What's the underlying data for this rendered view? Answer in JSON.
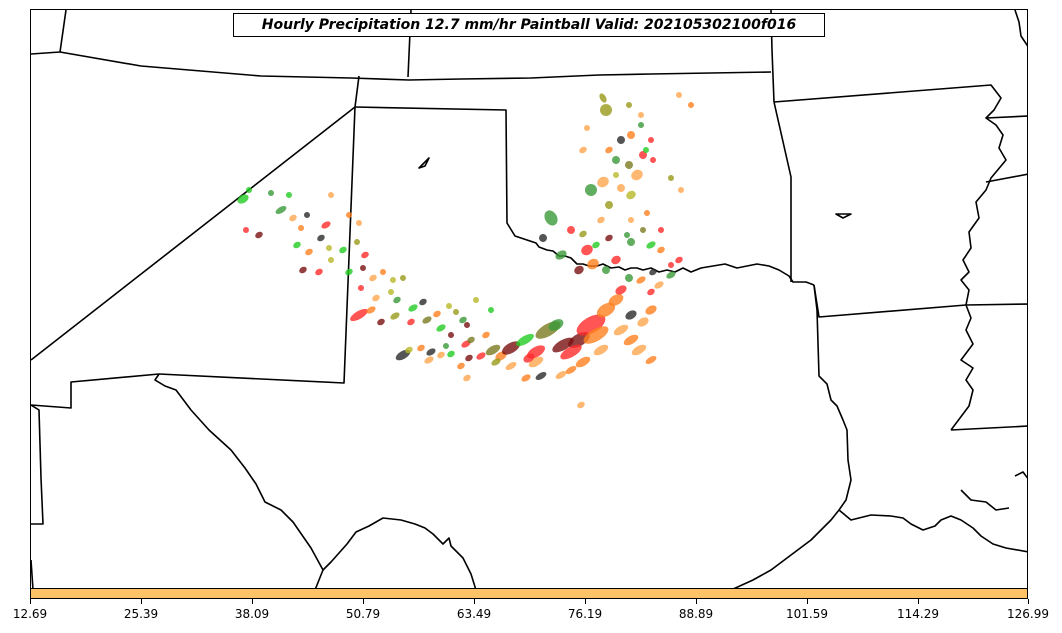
{
  "title": "Hourly Precipitation 12.7 mm/hr Paintball Valid: 202105302100f016",
  "colorbar": {
    "color": "#ffc266",
    "ticks": [
      "12.69",
      "25.39",
      "38.09",
      "50.79",
      "63.49",
      "76.19",
      "88.89",
      "101.59",
      "114.29",
      "126.99"
    ]
  },
  "map": {
    "region": "Southern Plains, United States",
    "boundary_color": "#000000",
    "member_colors": [
      "#22cc22",
      "#3a9a3a",
      "#ff2a2a",
      "#ff7f1e",
      "#ffa64d",
      "#9a9a1a",
      "#b8b828",
      "#7a1010",
      "#2a2a2a",
      "#7a7a20"
    ]
  }
}
